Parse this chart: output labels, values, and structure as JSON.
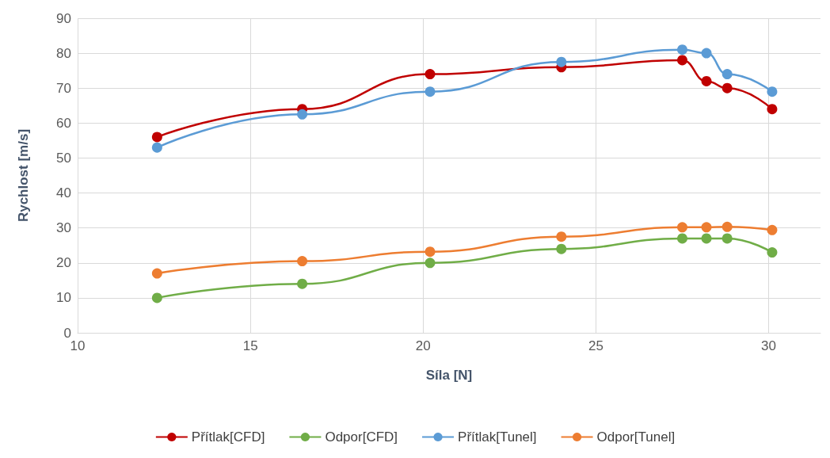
{
  "chart_data": {
    "type": "line",
    "xlabel": "Síla [N]",
    "ylabel": "Rychlost [m/s]",
    "xlim": [
      10,
      31.5
    ],
    "xticks": [
      10,
      15,
      20,
      25,
      30
    ],
    "ylim": [
      0,
      90
    ],
    "yticks": [
      0,
      10,
      20,
      30,
      40,
      50,
      60,
      70,
      80,
      90
    ],
    "grid": true,
    "legend": "bottom",
    "marker": "circle",
    "line_style": "solid",
    "series": [
      {
        "name": "Přítlak[CFD]",
        "color": "#c00000",
        "x": [
          12.3,
          16.5,
          20.2,
          24,
          27.5,
          28.2,
          28.8,
          30.1
        ],
        "values": [
          56,
          64,
          74,
          76,
          78,
          72,
          70,
          64
        ]
      },
      {
        "name": "Odpor[CFD]",
        "color": "#70ad47",
        "x": [
          12.3,
          16.5,
          20.2,
          24,
          27.5,
          28.2,
          28.8,
          30.1
        ],
        "values": [
          10,
          14,
          20,
          24,
          27,
          27,
          27,
          23
        ]
      },
      {
        "name": "Přítlak[Tunel]",
        "color": "#5b9bd5",
        "x": [
          12.3,
          16.5,
          20.2,
          24,
          27.5,
          28.2,
          28.8,
          30.1
        ],
        "values": [
          53,
          62.5,
          69,
          77.5,
          81,
          80,
          74,
          69
        ]
      },
      {
        "name": "Odpor[Tunel]",
        "color": "#ed7d31",
        "x": [
          12.3,
          16.5,
          20.2,
          24,
          27.5,
          28.2,
          28.8,
          30.1
        ],
        "values": [
          17,
          20.5,
          23.2,
          27.5,
          30.2,
          30.2,
          30.3,
          29.4
        ]
      }
    ]
  }
}
